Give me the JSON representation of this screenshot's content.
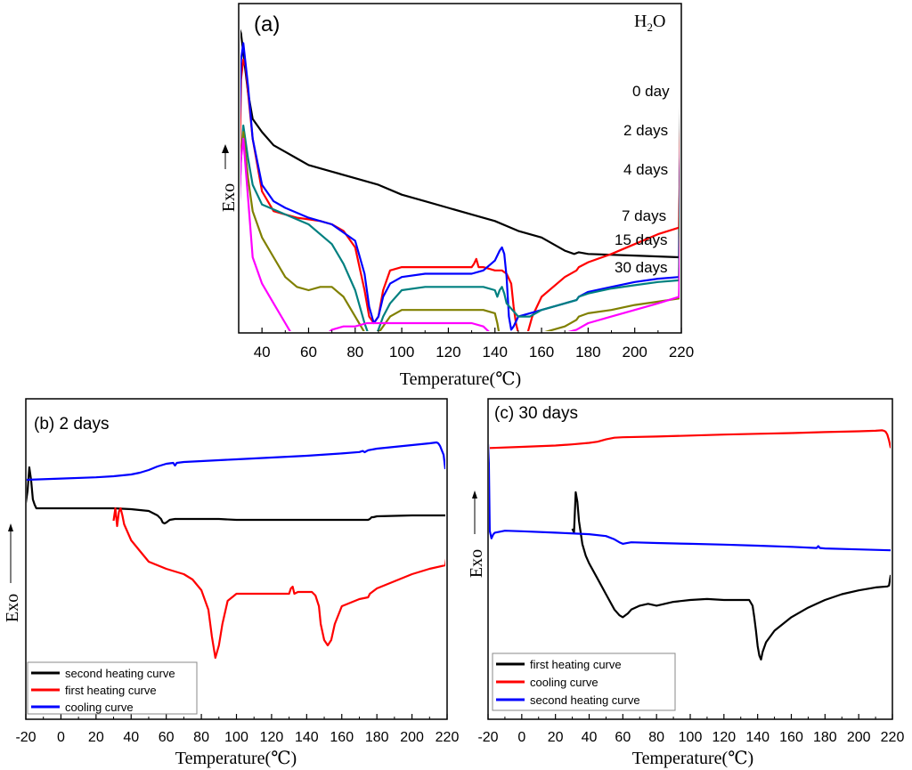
{
  "colors": {
    "black": "#000000",
    "red": "#ff0000",
    "blue": "#0000ff",
    "teal": "#008080",
    "olive": "#808000",
    "magenta": "#ff00ff"
  },
  "chart_data": [
    {
      "type": "line",
      "panel_label": "(a)",
      "header_text": "H2O",
      "xlabel": "Temperature(℃)",
      "ylabel": "Exo",
      "xlim": [
        30,
        220
      ],
      "xticks": [
        "40",
        "60",
        "80",
        "100",
        "120",
        "140",
        "160",
        "180",
        "200",
        "220"
      ],
      "series": [
        {
          "name": "0 day",
          "label": "0 day",
          "color": "#000000",
          "x": [
            30,
            31,
            32,
            34,
            36,
            40,
            45,
            50,
            55,
            60,
            70,
            80,
            90,
            100,
            110,
            120,
            130,
            140,
            150,
            160,
            170,
            174,
            176,
            180,
            200,
            219,
            220
          ],
          "y": [
            100,
            98,
            92,
            80,
            72,
            68,
            64,
            62,
            60,
            58,
            56,
            54,
            52,
            49,
            47,
            45,
            43,
            41,
            38,
            36,
            32,
            31,
            31.5,
            31,
            30.5,
            30,
            100
          ]
        },
        {
          "name": "2 days",
          "label": "2 days",
          "color": "#ff0000",
          "x": [
            30,
            31,
            32,
            33,
            34,
            36,
            40,
            45,
            50,
            55,
            60,
            65,
            70,
            75,
            80,
            84,
            86,
            88,
            90,
            92,
            95,
            100,
            110,
            120,
            130,
            131,
            132,
            133,
            135,
            140,
            143,
            145,
            147,
            148,
            149,
            150,
            152,
            154,
            156,
            160,
            170,
            175,
            176,
            180,
            190,
            200,
            210,
            219,
            220
          ],
          "y": [
            40,
            84,
            90,
            88,
            80,
            66,
            50,
            44,
            43,
            42,
            41.5,
            41,
            40,
            38,
            33,
            20,
            12,
            10,
            12,
            20,
            26,
            27,
            27,
            27,
            27,
            28,
            29.5,
            27,
            27,
            26,
            26,
            25,
            22,
            15,
            10,
            7,
            6,
            7,
            12,
            18,
            24,
            26,
            27,
            28.5,
            31,
            34,
            37,
            39,
            85
          ]
        },
        {
          "name": "4 days",
          "label": "4 days",
          "color": "#0000ff",
          "x": [
            30,
            31,
            32,
            34,
            36,
            40,
            45,
            50,
            60,
            70,
            80,
            84,
            86,
            88,
            90,
            92,
            95,
            100,
            110,
            120,
            130,
            135,
            140,
            142,
            143,
            144,
            145,
            146,
            147,
            148,
            150,
            155,
            160,
            170,
            175,
            176,
            180,
            190,
            200,
            210,
            219,
            220
          ],
          "y": [
            60,
            90,
            95,
            82,
            66,
            52,
            47,
            45,
            42,
            40,
            35,
            25,
            15,
            10,
            12,
            18,
            22,
            24,
            25,
            25,
            25,
            26,
            29,
            32,
            33,
            31,
            24,
            12,
            8,
            9,
            12,
            13,
            14,
            16,
            17,
            18,
            19.5,
            21,
            22.5,
            23.5,
            24,
            85
          ]
        },
        {
          "name": "7 days",
          "label": "7 days",
          "color": "#008080",
          "x": [
            30,
            31,
            32,
            34,
            36,
            40,
            50,
            60,
            70,
            75,
            80,
            84,
            86,
            88,
            90,
            92,
            95,
            100,
            110,
            120,
            130,
            135,
            140,
            141,
            142,
            143,
            144,
            145,
            150,
            155,
            160,
            170,
            175,
            176,
            180,
            190,
            200,
            210,
            219,
            220
          ],
          "y": [
            40,
            60,
            70,
            60,
            52,
            46,
            43,
            40,
            34,
            28,
            20,
            10,
            6,
            5,
            8,
            12,
            16,
            20,
            21,
            21,
            21,
            21,
            20,
            18,
            20,
            21,
            19,
            16,
            12,
            12,
            14,
            16,
            17,
            18,
            19,
            20.5,
            21.5,
            22.5,
            23,
            75
          ]
        },
        {
          "name": "15 days",
          "label": "15 days",
          "color": "#808000",
          "x": [
            30,
            31,
            32,
            34,
            36,
            40,
            45,
            50,
            55,
            60,
            65,
            70,
            75,
            80,
            85,
            88,
            90,
            95,
            100,
            110,
            120,
            130,
            135,
            140,
            141,
            142,
            143,
            145,
            150,
            160,
            170,
            175,
            176,
            180,
            190,
            200,
            210,
            219,
            220
          ],
          "y": [
            50,
            60,
            68,
            54,
            44,
            36,
            30,
            24,
            21,
            20,
            21,
            21,
            18,
            12,
            6,
            5,
            7,
            12,
            14,
            14,
            14,
            14,
            14,
            13,
            10,
            6,
            4,
            5,
            6,
            7,
            9,
            11,
            12,
            13,
            14,
            15.5,
            16.5,
            17.5,
            65
          ]
        },
        {
          "name": "30 days",
          "label": "30 days",
          "color": "#ff00ff",
          "x": [
            30,
            31,
            32,
            34,
            36,
            40,
            45,
            50,
            55,
            58,
            60,
            63,
            65,
            70,
            75,
            80,
            85,
            90,
            100,
            110,
            120,
            130,
            135,
            138,
            140,
            141,
            142,
            143,
            144,
            145,
            147,
            150,
            155,
            160,
            165,
            170,
            175,
            180,
            190,
            200,
            210,
            219,
            220
          ],
          "y": [
            40,
            60,
            66,
            48,
            30,
            22,
            16,
            10,
            4,
            2,
            1.5,
            3,
            5,
            8,
            9,
            9,
            10,
            10,
            10,
            10,
            10,
            10,
            9,
            7,
            -5,
            -15,
            -22,
            -23,
            -18,
            -12,
            -6,
            -1,
            2,
            4,
            5,
            7,
            8,
            10,
            12,
            14,
            16,
            18,
            50
          ]
        }
      ]
    },
    {
      "type": "line",
      "panel_label": "(b) 2 days",
      "xlabel": "Temperature(℃)",
      "ylabel": "Exo",
      "xlim": [
        -20,
        220
      ],
      "xticks": [
        "-20",
        "0",
        "20",
        "40",
        "60",
        "80",
        "100",
        "120",
        "140",
        "160",
        "180",
        "200",
        "220"
      ],
      "legend_position": "bottom-left",
      "series": [
        {
          "name": "second heating curve",
          "color": "#000000",
          "x": [
            -20,
            -19,
            -18,
            -17,
            -16,
            -15,
            -14,
            -12,
            -10,
            0,
            10,
            20,
            30,
            40,
            50,
            55,
            57,
            58,
            59,
            60,
            62,
            65,
            70,
            80,
            90,
            100,
            120,
            140,
            160,
            175,
            176,
            177,
            178,
            180,
            200,
            219
          ],
          "y": [
            65,
            72,
            85,
            78,
            67,
            64,
            62,
            62,
            62,
            62,
            62,
            62,
            62,
            61.5,
            60.5,
            58,
            56,
            54,
            53.5,
            54,
            55.5,
            56,
            56,
            56,
            56,
            55.5,
            55.5,
            55.5,
            55.5,
            55.5,
            56,
            57,
            57,
            57.5,
            58,
            58
          ]
        },
        {
          "name": "first heating curve",
          "color": "#ff0000",
          "x": [
            30,
            31,
            32,
            33,
            34,
            35,
            36,
            40,
            45,
            50,
            60,
            65,
            70,
            75,
            80,
            84,
            86,
            88,
            90,
            92,
            95,
            100,
            110,
            120,
            130,
            131,
            132,
            133,
            135,
            140,
            143,
            145,
            147,
            148,
            150,
            152,
            154,
            156,
            160,
            170,
            175,
            176,
            180,
            190,
            200,
            210,
            219,
            220
          ],
          "y": [
            55,
            62,
            52,
            60,
            62,
            58,
            53,
            44,
            38,
            32,
            28,
            26.5,
            25,
            22,
            16,
            5,
            -10,
            -22,
            -15,
            -3,
            10,
            14,
            14,
            14,
            14,
            17,
            18,
            14,
            15,
            15,
            15,
            13,
            7,
            -3,
            -12,
            -15,
            -12,
            -3,
            7,
            11,
            12,
            14,
            17,
            21,
            25,
            28,
            30,
            37
          ]
        },
        {
          "name": "cooling curve",
          "color": "#0000ff",
          "x": [
            -20,
            0,
            20,
            30,
            40,
            45,
            50,
            55,
            60,
            64,
            65,
            66,
            70,
            80,
            100,
            120,
            140,
            160,
            170,
            172,
            173,
            175,
            180,
            190,
            200,
            210,
            214,
            215,
            216,
            218,
            219
          ],
          "y": [
            78,
            78.7,
            79.4,
            80,
            81,
            82,
            83.5,
            85.5,
            87,
            87.5,
            86,
            87.5,
            88,
            88.5,
            89.5,
            90.5,
            91.5,
            92.8,
            93.6,
            94.2,
            93.5,
            94.6,
            95.5,
            96.5,
            97.5,
            98.5,
            99,
            98.5,
            97,
            92,
            84
          ]
        }
      ]
    },
    {
      "type": "line",
      "panel_label": "(c) 30 days",
      "xlabel": "Temperature(℃)",
      "ylabel": "Exo",
      "xlim": [
        -20,
        220
      ],
      "xticks": [
        "-20",
        "0",
        "20",
        "40",
        "60",
        "80",
        "100",
        "120",
        "140",
        "160",
        "180",
        "200",
        "220"
      ],
      "legend_position": "bottom-left",
      "series": [
        {
          "name": "first heating curve",
          "color": "#000000",
          "x": [
            30,
            31,
            32,
            33,
            34,
            36,
            38,
            40,
            45,
            50,
            55,
            58,
            60,
            63,
            65,
            70,
            75,
            80,
            90,
            100,
            110,
            120,
            130,
            135,
            137,
            138,
            139,
            140,
            141,
            142,
            143,
            145,
            150,
            160,
            170,
            175,
            180,
            190,
            200,
            210,
            217,
            218,
            219
          ],
          "y": [
            56,
            54,
            75,
            70,
            60,
            48,
            42,
            38,
            30,
            22,
            14,
            11,
            10,
            12,
            14,
            16,
            17,
            16,
            18,
            19,
            19.5,
            19,
            19,
            19,
            16,
            10,
            3,
            -5,
            -10,
            -12,
            -8,
            -3,
            3,
            10,
            15,
            17,
            19,
            22,
            24,
            25.5,
            26,
            26.5,
            32
          ]
        },
        {
          "name": "cooling curve",
          "color": "#ff0000",
          "x": [
            -19,
            0,
            20,
            30,
            40,
            45,
            50,
            55,
            60,
            80,
            100,
            120,
            140,
            160,
            180,
            200,
            210,
            214,
            215,
            216,
            217,
            218,
            219
          ],
          "y": [
            98,
            98.6,
            99.3,
            99.9,
            100.7,
            101.3,
            102.5,
            103.4,
            103.6,
            104,
            104.5,
            105,
            105.4,
            105.8,
            106.3,
            106.7,
            107,
            107.2,
            107,
            106.5,
            105,
            102,
            98
          ]
        },
        {
          "name": "second heating curve",
          "color": "#0000ff",
          "x": [
            -20,
            -19.5,
            -19,
            -18,
            -17,
            -16,
            -10,
            0,
            20,
            40,
            50,
            55,
            58,
            60,
            62,
            65,
            80,
            100,
            120,
            140,
            160,
            175,
            176,
            177,
            180,
            200,
            219
          ],
          "y": [
            100,
            90,
            55,
            51,
            53,
            54,
            55,
            54.7,
            54,
            53.2,
            52.2,
            50.5,
            49,
            48.2,
            48.5,
            49,
            48.6,
            48.2,
            47.8,
            47.2,
            46.6,
            46,
            47,
            46,
            45.8,
            45.3,
            44.8
          ]
        }
      ]
    }
  ]
}
